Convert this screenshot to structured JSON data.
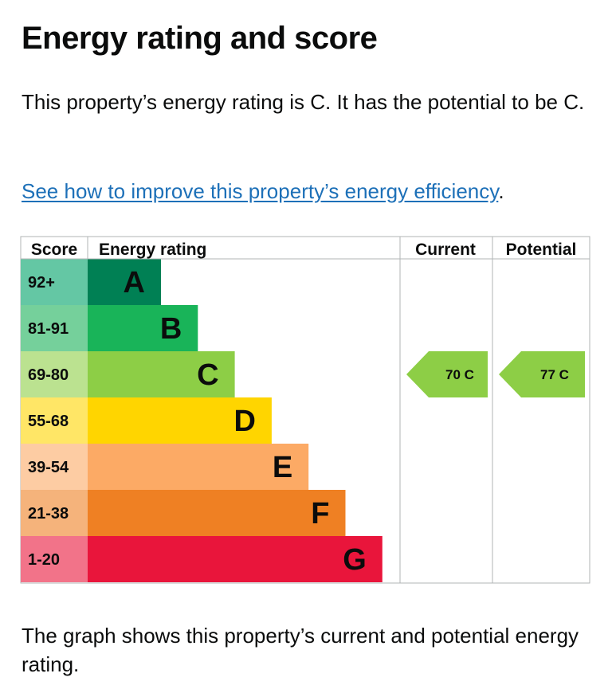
{
  "heading": "Energy rating and score",
  "intro": "This property’s energy rating is C. It has the potential to be C.",
  "improve_link": "See how to improve this property’s energy efficiency",
  "improve_suffix": ".",
  "footer": "The graph shows this property’s current and potential energy rating.",
  "chart_data": {
    "type": "bar",
    "headers": {
      "score": "Score",
      "rating": "Energy rating",
      "current": "Current",
      "potential": "Potential"
    },
    "bands": [
      {
        "letter": "A",
        "range": "92+",
        "color": "#008054",
        "score_bg": "#64c7a4"
      },
      {
        "letter": "B",
        "range": "81-91",
        "color": "#19b459",
        "score_bg": "#75d09b"
      },
      {
        "letter": "C",
        "range": "69-80",
        "color": "#8dce46",
        "score_bg": "#bbe290"
      },
      {
        "letter": "D",
        "range": "55-68",
        "color": "#ffd500",
        "score_bg": "#ffe666"
      },
      {
        "letter": "E",
        "range": "39-54",
        "color": "#fcaa65",
        "score_bg": "#fdcca3"
      },
      {
        "letter": "F",
        "range": "21-38",
        "color": "#ef8023",
        "score_bg": "#f5b37b"
      },
      {
        "letter": "G",
        "range": "1-20",
        "color": "#e9153b",
        "score_bg": "#f27389"
      }
    ],
    "current": {
      "score": 70,
      "letter": "C",
      "label": "70 C",
      "color": "#8dce46"
    },
    "potential": {
      "score": 77,
      "letter": "C",
      "label": "77 C",
      "color": "#8dce46"
    }
  }
}
